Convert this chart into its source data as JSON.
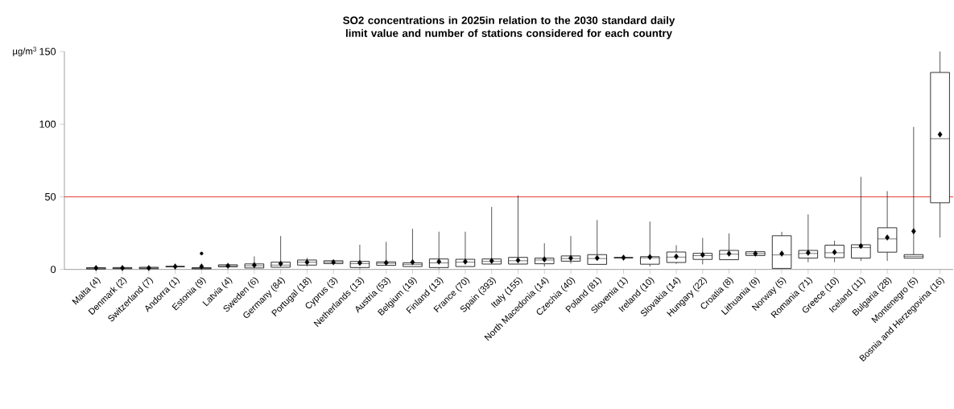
{
  "chart_data": {
    "type": "box",
    "title": "SO2 concentrations in 2025in relation to the 2030 standard daily limit value and number of stations considered for each country",
    "ylabel": "µg/m$^{3}$",
    "categories": [
      "Malta (4)",
      "Denmark (2)",
      "Switzerland (7)",
      "Andorra (1)",
      "Estonia (9)",
      "Latvia (4)",
      "Sweden (6)",
      "Germany (84)",
      "Portugal (18)",
      "Cyprus (3)",
      "Netherlands (13)",
      "Austria (53)",
      "Belgium (19)",
      "Finland (13)",
      "France (70)",
      "Spain (393)",
      "Italy (155)",
      "North Macedonia (14)",
      "Czechia (40)",
      "Poland (81)",
      "Slovenia (1)",
      "Ireland (10)",
      "Slovakia (14)",
      "Hungary (22)",
      "Croatia (8)",
      "Lithuania (9)",
      "Norway (5)",
      "Romania (71)",
      "Greece (10)",
      "Iceland (11)",
      "Bulgaria (28)",
      "Montenegro (5)",
      "Bosnia and Herzegovina (16)"
    ],
    "boxes": [
      {
        "low": 0.3,
        "q1": 0.3,
        "median": 0.8,
        "q3": 1.2,
        "high": 1.2,
        "mean": 1
      },
      {
        "low": 0.5,
        "q1": 0.5,
        "median": 0.9,
        "q3": 1.3,
        "high": 1.3,
        "mean": 1
      },
      {
        "low": 0.5,
        "q1": 0.5,
        "median": 1,
        "q3": 1.5,
        "high": 1.5,
        "mean": 1
      },
      {
        "low": 2,
        "q1": 2,
        "median": 2,
        "q3": 2,
        "high": 2,
        "mean": 2
      },
      {
        "low": 0.4,
        "q1": 0.4,
        "median": 0.8,
        "q3": 1.2,
        "high": 1.2,
        "mean": 2,
        "outliers": [
          11
        ]
      },
      {
        "low": 1.8,
        "q1": 1.8,
        "median": 2.5,
        "q3": 3.2,
        "high": 3.2,
        "mean": 2.5
      },
      {
        "low": 1,
        "q1": 1,
        "median": 2.5,
        "q3": 3.8,
        "high": 9,
        "mean": 3
      },
      {
        "low": 1.5,
        "q1": 1.5,
        "median": 3,
        "q3": 5,
        "high": 23,
        "mean": 4
      },
      {
        "low": 2,
        "q1": 3,
        "median": 5,
        "q3": 6.5,
        "high": 8,
        "mean": 5
      },
      {
        "low": 3.5,
        "q1": 4,
        "median": 5,
        "q3": 6,
        "high": 6.5,
        "mean": 5
      },
      {
        "low": 0.5,
        "q1": 1.3,
        "median": 4,
        "q3": 5.5,
        "high": 17,
        "mean": 4.5
      },
      {
        "low": 2.8,
        "q1": 2.8,
        "median": 4.2,
        "q3": 5.2,
        "high": 19,
        "mean": 4.6
      },
      {
        "low": 2,
        "q1": 2,
        "median": 3.5,
        "q3": 4.6,
        "high": 28,
        "mean": 5
      },
      {
        "low": 0.5,
        "q1": 1.3,
        "median": 4.5,
        "q3": 7.2,
        "high": 26,
        "mean": 5.4
      },
      {
        "low": 2,
        "q1": 2,
        "median": 5,
        "q3": 7,
        "high": 26,
        "mean": 5.4
      },
      {
        "low": 3.7,
        "q1": 3.7,
        "median": 5.5,
        "q3": 7.2,
        "high": 43,
        "mean": 5.9
      },
      {
        "low": 3.7,
        "q1": 3.7,
        "median": 6,
        "q3": 8.3,
        "high": 51,
        "mean": 6.3
      },
      {
        "low": 2,
        "q1": 3.9,
        "median": 6.5,
        "q3": 7.8,
        "high": 18,
        "mean": 6.9
      },
      {
        "low": 4,
        "q1": 5.7,
        "median": 7.5,
        "q3": 9.3,
        "high": 23,
        "mean": 7.8
      },
      {
        "low": 3.5,
        "q1": 3.5,
        "median": 7.5,
        "q3": 10.2,
        "high": 34,
        "mean": 7.9
      },
      {
        "low": 8.1,
        "q1": 8.1,
        "median": 8.1,
        "q3": 8.1,
        "high": 8.1,
        "mean": 8.1
      },
      {
        "low": 2,
        "q1": 3.6,
        "median": 8,
        "q3": 8.8,
        "high": 33,
        "mean": 8.5
      },
      {
        "low": 3.9,
        "q1": 4.8,
        "median": 8.5,
        "q3": 12,
        "high": 16.7,
        "mean": 8.9
      },
      {
        "low": 3.5,
        "q1": 6.9,
        "median": 9.5,
        "q3": 11.1,
        "high": 21.7,
        "mean": 10
      },
      {
        "low": 6.7,
        "q1": 6.7,
        "median": 10.5,
        "q3": 13.1,
        "high": 24.8,
        "mean": 10.9
      },
      {
        "low": 9.6,
        "q1": 9.6,
        "median": 10.9,
        "q3": 12.2,
        "high": 12.2,
        "mean": 10.9
      },
      {
        "low": 0.5,
        "q1": 0.7,
        "median": 10,
        "q3": 23.2,
        "high": 25.9,
        "mean": 10.9
      },
      {
        "low": 5,
        "q1": 7.8,
        "median": 11,
        "q3": 13.1,
        "high": 37.9,
        "mean": 11.5
      },
      {
        "low": 5,
        "q1": 8.1,
        "median": 11.5,
        "q3": 16.7,
        "high": 19.8,
        "mean": 11.9
      },
      {
        "low": 5.9,
        "q1": 7.8,
        "median": 15,
        "q3": 17,
        "high": 63.7,
        "mean": 16.1
      },
      {
        "low": 5.9,
        "q1": 11.9,
        "median": 21,
        "q3": 28.7,
        "high": 53.9,
        "mean": 22
      },
      {
        "low": 7.5,
        "q1": 7.8,
        "median": 9,
        "q3": 10.2,
        "high": 98.1,
        "mean": 26.3
      },
      {
        "low": 22,
        "q1": 45.9,
        "median": 90,
        "q3": 135.6,
        "high": 150,
        "mean": 92.9
      }
    ],
    "color": "#000000",
    "marker": "diamond",
    "ylim": [
      0,
      150
    ],
    "yticks": [
      0,
      50,
      100,
      150
    ],
    "ref_lines": [
      {
        "axis": "y",
        "value": 50,
        "color": "#e8413c"
      }
    ]
  }
}
